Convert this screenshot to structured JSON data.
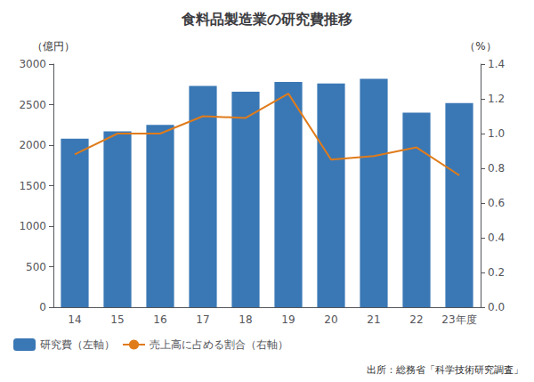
{
  "chart_data": {
    "type": "bar",
    "title": "食料品製造業の研究費推移",
    "ylabel": "（億円）",
    "y2label": "（%）",
    "annotations": [
      "出所：総務省「科学技術研究調査」"
    ],
    "categories": [
      "14",
      "15",
      "16",
      "17",
      "18",
      "19",
      "20",
      "21",
      "22",
      "23年度"
    ],
    "series": [
      {
        "name": "研究費（左軸）",
        "type": "bar",
        "color": "#3a78b5",
        "values": [
          2080,
          2170,
          2250,
          2730,
          2660,
          2780,
          2760,
          2820,
          2400,
          2520
        ]
      },
      {
        "name": "売上高に占める割合（右軸）",
        "type": "line",
        "axis": "y2",
        "color": "#e07b1a",
        "values": [
          0.88,
          1.0,
          1.0,
          1.1,
          1.09,
          1.23,
          0.85,
          0.87,
          0.92,
          0.76
        ]
      }
    ],
    "ylim": [
      0,
      3000
    ],
    "yticks": [
      0,
      500,
      1000,
      1500,
      2000,
      2500,
      3000
    ],
    "y2lim": [
      0,
      1.4
    ],
    "y2ticks": [
      {
        "value": 0,
        "label": "0.0"
      },
      0.2,
      0.4,
      0.6,
      0.8,
      {
        "value": 1,
        "label": "1.0"
      },
      1.2,
      1.4
    ],
    "grid": false,
    "legend": "lower left"
  }
}
